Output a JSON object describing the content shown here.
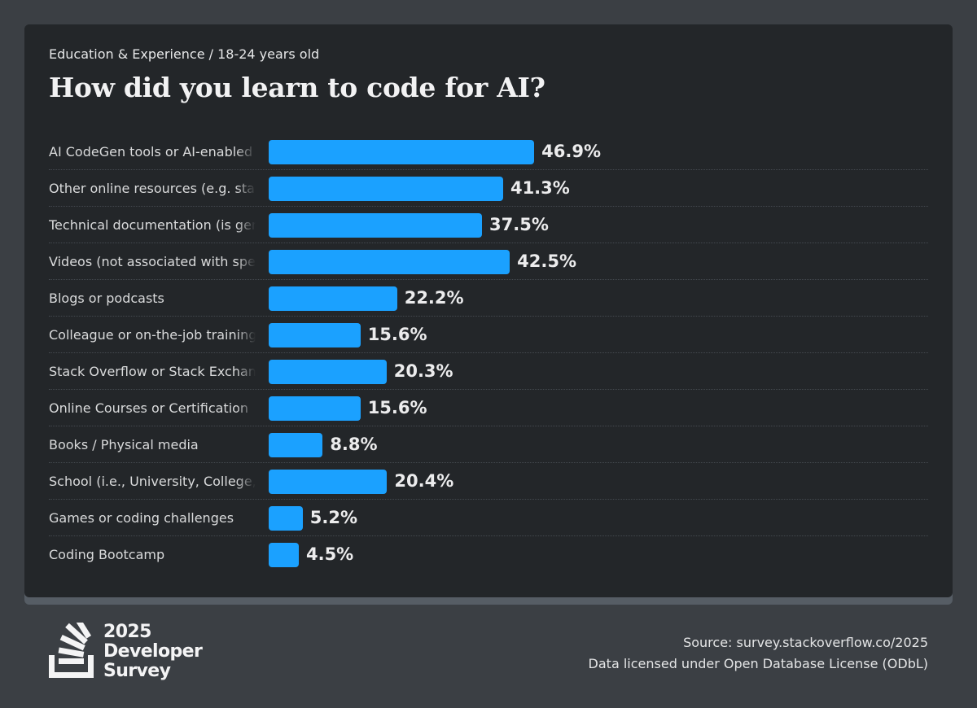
{
  "header": {
    "breadcrumb": "Education & Experience / 18-24 years old",
    "title": "How did you learn to code for AI?"
  },
  "chart_data": {
    "type": "bar",
    "orientation": "horizontal",
    "title": "How did you learn to code for AI?",
    "subtitle": "Education & Experience / 18-24 years old",
    "categories": [
      "AI CodeGen tools or AI-enabled apps",
      "Other online resources (e.g. standard search, forum, online community)",
      "Technical documentation (is generated for/by the product you use)",
      "Videos (not associated with specific online course or certification)",
      "Blogs or podcasts",
      "Colleague or on-the-job training",
      "Stack Overflow or Stack Exchange",
      "Online Courses or Certification",
      "Books / Physical media",
      "School (i.e., University, College, etc)",
      "Games or coding challenges",
      "Coding Bootcamp"
    ],
    "values": [
      46.9,
      41.3,
      37.5,
      42.5,
      22.2,
      15.6,
      20.3,
      15.6,
      8.8,
      20.4,
      5.2,
      4.5
    ],
    "value_labels": [
      "46.9%",
      "41.3%",
      "37.5%",
      "42.5%",
      "22.2%",
      "15.6%",
      "20.3%",
      "15.6%",
      "8.8%",
      "20.4%",
      "5.2%",
      "4.5%"
    ],
    "unit": "%",
    "xlabel": "",
    "ylabel": "",
    "xlim": [
      0,
      50
    ],
    "grid": false,
    "legend": "none",
    "bar_color": "#1ba1ff"
  },
  "footer": {
    "brand_lines": [
      "2025",
      "Developer",
      "Survey"
    ],
    "source": "Source: survey.stackoverflow.co/2025",
    "license": "Data licensed under Open Database License (ODbL)"
  },
  "colors": {
    "page_background": "#3b3f44",
    "card_background": "#232629",
    "bar": "#1ba1ff",
    "text": "#ececed"
  }
}
